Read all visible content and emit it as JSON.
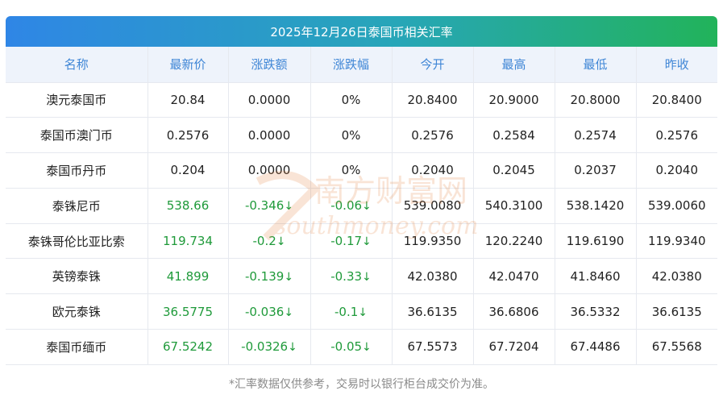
{
  "title": "2025年12月26日泰国币相关汇率",
  "columns": [
    "名称",
    "最新价",
    "涨跌额",
    "涨跌幅",
    "今开",
    "最高",
    "最低",
    "昨收"
  ],
  "rows": [
    {
      "name": "澳元泰国币",
      "latest": "20.84",
      "change": "0.0000",
      "pct": "0%",
      "open": "20.8400",
      "high": "20.9000",
      "low": "20.8000",
      "prev": "20.8400",
      "dir": "flat"
    },
    {
      "name": "泰国币澳门币",
      "latest": "0.2576",
      "change": "0.0000",
      "pct": "0%",
      "open": "0.2576",
      "high": "0.2584",
      "low": "0.2574",
      "prev": "0.2576",
      "dir": "flat"
    },
    {
      "name": "泰国币丹币",
      "latest": "0.204",
      "change": "0.0000",
      "pct": "0%",
      "open": "0.2040",
      "high": "0.2045",
      "low": "0.2037",
      "prev": "0.2040",
      "dir": "flat"
    },
    {
      "name": "泰铢尼币",
      "latest": "538.66",
      "change": "-0.346",
      "pct": "-0.06",
      "open": "539.0080",
      "high": "540.3100",
      "low": "538.1420",
      "prev": "539.0060",
      "dir": "down"
    },
    {
      "name": "泰铢哥伦比亚比索",
      "latest": "119.734",
      "change": "-0.2",
      "pct": "-0.17",
      "open": "119.9350",
      "high": "120.2240",
      "low": "119.6190",
      "prev": "119.9340",
      "dir": "down"
    },
    {
      "name": "英镑泰铢",
      "latest": "41.899",
      "change": "-0.139",
      "pct": "-0.33",
      "open": "42.0380",
      "high": "42.0470",
      "low": "41.8460",
      "prev": "42.0380",
      "dir": "down"
    },
    {
      "name": "欧元泰铢",
      "latest": "36.5775",
      "change": "-0.036",
      "pct": "-0.1",
      "open": "36.6135",
      "high": "36.6806",
      "low": "36.5332",
      "prev": "36.6135",
      "dir": "down"
    },
    {
      "name": "泰国币缅币",
      "latest": "67.5242",
      "change": "-0.0326",
      "pct": "-0.05",
      "open": "67.5573",
      "high": "67.7204",
      "low": "67.4486",
      "prev": "67.5568",
      "dir": "down"
    }
  ],
  "footnote": "*汇率数据仅供参考，交易时以银行柜台成交价为准。",
  "watermark": "南方财富网 southmoney.com",
  "colors": {
    "header_text": "#3f86d6",
    "change_color": "#1f9a3a"
  }
}
